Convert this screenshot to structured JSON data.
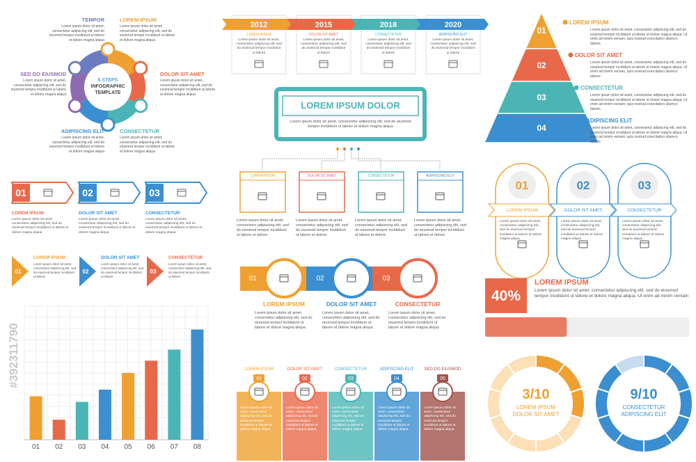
{
  "watermark": "#392311790",
  "circle_steps": {
    "center": [
      "6 STEPS",
      "INFOGRAPHIC",
      "TEMPLATE"
    ],
    "steps": [
      {
        "title": "TEMPOR",
        "text": "Lorem ipsum dolor sit amet, consectetur adipiscing elit, sed do eiusmod tempor incididunt ut labore et dolore magna aliqua"
      },
      {
        "title": "LOREM IPSUM",
        "text": "Lorem ipsum dolor sit amet, consectetur adipiscing elit, sed do eiusmod tempor incididunt ut labore et dolore magna aliqua"
      },
      {
        "title": "DOLOR SIT AMET",
        "text": "Lorem ipsum dolor sit amet, consectetur adipiscing elit, sed do eiusmod tempor incididunt ut labore et dolore magna aliqua"
      },
      {
        "title": "CONSECTETUR",
        "text": "Lorem ipsum dolor sit amet, consectetur adipiscing elit, sed do eiusmod tempor incididunt ut labore et dolore magna aliqua"
      },
      {
        "title": "ADIPISCING ELIT",
        "text": "Lorem ipsum dolor sit amet, consectetur adipiscing elit, sed do eiusmod tempor incididunt ut labore et dolore magna aliqua"
      },
      {
        "title": "SED DO EIUSMOD",
        "text": "Lorem ipsum dolor sit amet, consectetur adipiscing elit, sed do eiusmod tempor incididunt ut labore et dolore magna aliqua"
      }
    ]
  },
  "timeline": [
    {
      "year": "2012",
      "label": "LOREM IPSUM",
      "text": "Lorem ipsum dolor sit amet, consectetur adipiscing elit, sed do eiusmod tempor incididunt ut labore"
    },
    {
      "year": "2015",
      "label": "DOLOR SIT AMET",
      "text": "Lorem ipsum dolor sit amet, consectetur adipiscing elit, sed do eiusmod tempor incididunt ut labore"
    },
    {
      "year": "2018",
      "label": "CONSECTETUR",
      "text": "Lorem ipsum dolor sit amet, consectetur adipiscing elit, sed do eiusmod tempor incididunt ut labore"
    },
    {
      "year": "2020",
      "label": "ADIPISCING ELIT",
      "text": "Lorem ipsum dolor sit amet, consectetur adipiscing elit, sed do eiusmod tempor incididunt ut labore"
    }
  ],
  "pyramid": [
    {
      "number": "01",
      "title": "LOREM IPSUM",
      "text": "Lorem ipsum dolor sit amet, consectetur adipiscing elit, sed do eiusmod tempor incididunt ut labore et dolore magna aliqua. Ut enim ad minim veniam, quis nostrud exercitation ullamco laboris"
    },
    {
      "number": "02",
      "title": "DOLOR SIT AMET",
      "text": "Lorem ipsum dolor sit amet, consectetur adipiscing elit, sed do eiusmod tempor incididunt ut labore et dolore magna aliqua. Ut enim ad minim veniam, quis nostrud exercitation ullamco laboris"
    },
    {
      "number": "03",
      "title": "CONSECTETUR",
      "text": "Lorem ipsum dolor sit amet, consectetur adipiscing elit, sed do eiusmod tempor incididunt ut labore et dolore magna aliqua. Ut enim ad minim veniam, quis nostrud exercitation ullamco laboris"
    },
    {
      "number": "04",
      "title": "ADIPISCING ELIT",
      "text": "Lorem ipsum dolor sit amet, consectetur adipiscing elit, sed do eiusmod tempor incididunt ut labore et dolore magna aliqua. Ut enim ad minim veniam, quis nostrud exercitation ullamco laboris"
    }
  ],
  "org_chart": {
    "title": "LOREM IPSUM DOLOR",
    "text": "Lorem ipsum dolor sit amet, consectetur adipiscing elit, sed do eiusmod tempor incididunt ut labore et dolore magna aliqua",
    "boxes": [
      {
        "label": "LOREM IPSUM",
        "text": "Lorem ipsum dolor sit amet, consectetur adipiscing elit, sed do eiusmod tempor incididunt ut labore et dolore"
      },
      {
        "label": "DOLOR SIT AMET",
        "text": "Lorem ipsum dolor sit amet, consectetur adipiscing elit, sed do eiusmod tempor incididunt ut labore et dolore"
      },
      {
        "label": "CONSECTETUR",
        "text": "Lorem ipsum dolor sit amet, consectetur adipiscing elit, sed do eiusmod tempor incididunt ut labore et dolore"
      },
      {
        "label": "ADIPISCING ELIT",
        "text": "Lorem ipsum dolor sit amet, consectetur adipiscing elit, sed do eiusmod tempor incididunt ut labore et dolore"
      }
    ]
  },
  "arrow_steps": [
    {
      "number": "01",
      "title": "LOREM IPSUM",
      "text": "Lorem ipsum dolor sit amet, consectetur adipiscing elit, sed do eiusmod tempor incididunt ut labore et dolore magna aliqua"
    },
    {
      "number": "02",
      "title": "DOLOR SIT AMET",
      "text": "Lorem ipsum dolor sit amet, consectetur adipiscing elit, sed do eiusmod tempor incididunt ut labore et dolore magna aliqua"
    },
    {
      "number": "03",
      "title": "CONSECTETUR",
      "text": "Lorem ipsum dolor sit amet, consectetur adipiscing elit, sed do eiusmod tempor incididunt ut labore et dolore magna aliqua"
    }
  ],
  "triangle_steps": [
    {
      "number": "01",
      "title": "LOREM IPSUM",
      "text": "Lorem ipsum dolor sit amet, consectetur adipiscing elit, sed do eiusmod tempor incididunt ut labore"
    },
    {
      "number": "02",
      "title": "DOLOR SIT AMET",
      "text": "Lorem ipsum dolor sit amet, consectetur adipiscing elit, sed do eiusmod tempor incididunt ut labore"
    },
    {
      "number": "03",
      "title": "CONSECTETUR",
      "text": "Lorem ipsum dolor sit amet, consectetur adipiscing elit, sed do eiusmod tempor incididunt ut labore"
    }
  ],
  "capsules": [
    {
      "number": "01",
      "title": "LOREM IPSUM",
      "text": "Lorem ipsum dolor sit amet, consectetur adipiscing elit, sed do eiusmod tempor incididunt ut labore et dolore magna aliqua"
    },
    {
      "number": "02",
      "title": "DOLOR SIT AMET",
      "text": "Lorem ipsum dolor sit amet, consectetur adipiscing elit, sed do eiusmod tempor incididunt ut labore et dolore magna aliqua"
    },
    {
      "number": "03",
      "title": "CONSECTETUR",
      "text": "Lorem ipsum dolor sit amet, consectetur adipiscing elit, sed do eiusmod tempor incididunt ut labore et dolore magna aliqua"
    }
  ],
  "circle_row": [
    {
      "number": "01",
      "title": "LOREM IPSUM",
      "text": "Lorem ipsum dolor sit amet, consectetur adipiscing elit, sed do eiusmod tempor incididunt ut labore et dolore magna aliqua"
    },
    {
      "number": "02",
      "title": "DOLOR SIT AMET",
      "text": "Lorem ipsum dolor sit amet, consectetur adipiscing elit, sed do eiusmod tempor incididunt ut labore et dolore magna aliqua"
    },
    {
      "number": "03",
      "title": "CONSECTETUR",
      "text": "Lorem ipsum dolor sit amet, consectetur adipiscing elit, sed do eiusmod tempor incididunt ut labore et dolore magna aliqua"
    }
  ],
  "progress": {
    "value": "40%",
    "title": "LOREM IPSUM",
    "text": "Lorem ipsum dolor sit amet, consectetur adipiscing elit, sed do eiusmod tempor incididunt ut labore et dolore magna aliqua. Ut enim ad minim veniam"
  },
  "bar_chart": {
    "type": "bar",
    "categories": [
      "01",
      "02",
      "03",
      "04",
      "05",
      "06",
      "07",
      "08"
    ],
    "values": [
      3.9,
      1.8,
      3.4,
      4.5,
      6,
      7.1,
      8.1,
      9.9
    ],
    "colors": [
      "#f0a030",
      "#e8694a",
      "#4bb5b5",
      "#3b8fd0",
      "#f0a030",
      "#e8694a",
      "#4bb5b5",
      "#3b8fd0"
    ],
    "ylim": [
      0,
      12
    ]
  },
  "columns": [
    {
      "title": "LOREM IPSUM",
      "number": "01",
      "text": "Lorem ipsum dolor sit amet, consectetur adipiscing elit, sed do eiusmod tempor incididunt ut labore et dolore magna aliqua"
    },
    {
      "title": "DOLOR SIT AMET",
      "number": "02",
      "text": "Lorem ipsum dolor sit amet, consectetur adipiscing elit, sed do eiusmod tempor incididunt ut labore et dolore magna aliqua"
    },
    {
      "title": "CONSECTETUR",
      "number": "03",
      "text": "Lorem ipsum dolor sit amet, consectetur adipiscing elit, sed do eiusmod tempor incididunt ut labore et dolore magna aliqua"
    },
    {
      "title": "ADIPISCING ELIT",
      "number": "04",
      "text": "Lorem ipsum dolor sit amet, consectetur adipiscing elit, sed do eiusmod tempor incididunt ut labore et dolore magna aliqua"
    },
    {
      "title": "SED DO EIUSMOD",
      "number": "05",
      "text": "Lorem ipsum dolor sit amet, consectetur adipiscing elit, sed do eiusmod tempor incididunt ut labore et dolore magna aliqua"
    }
  ],
  "donuts": [
    {
      "value": "3/10",
      "label": [
        "LOREM IPSUM",
        "DOLOR SIT AMET"
      ]
    },
    {
      "value": "9/10",
      "label": [
        "CONSECTETUR",
        "ADIPISCING ELIT"
      ]
    }
  ]
}
